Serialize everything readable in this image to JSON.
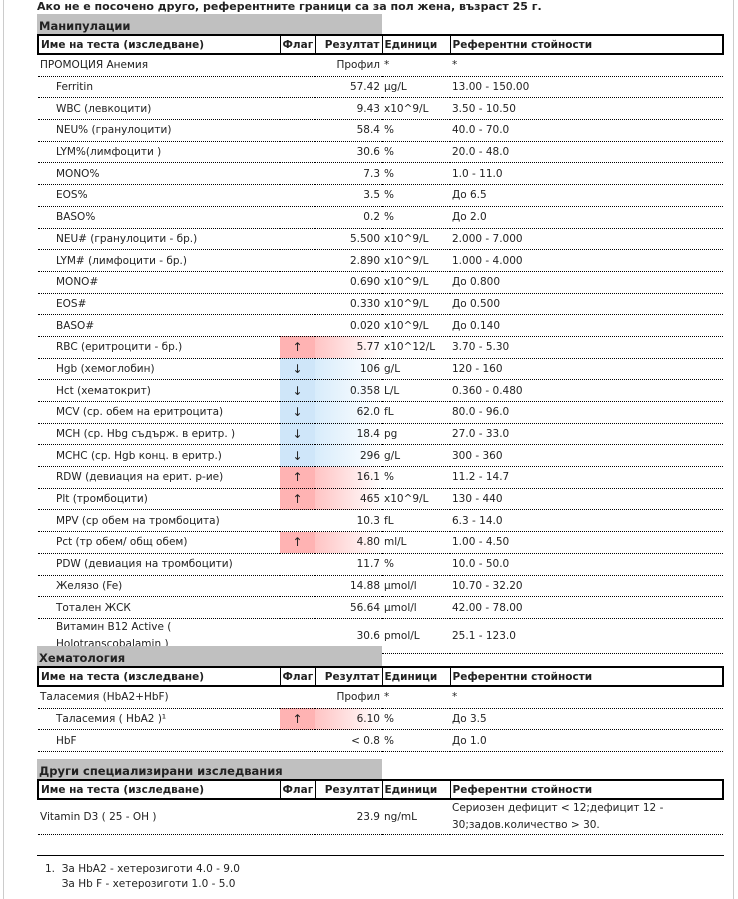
{
  "note": "Ако не е посочено друго, референтните граници са за пол жена, възраст 25 г.",
  "columns": {
    "name": "Име на теста (изследване)",
    "flag": "Флаг",
    "result": "Резултат",
    "units": "Единици",
    "ref": "Референтни стойности"
  },
  "flag_icons": {
    "up": "↑",
    "down": "↓"
  },
  "colors": {
    "high": "#ffb3b3",
    "low": "#cfe6f9",
    "section": "#c0c0c0"
  },
  "sections": [
    {
      "title": "Манипулации",
      "rows": [
        {
          "name": "ПРОМОЦИЯ Анемия",
          "flag": "",
          "result": "Профил",
          "units": "*",
          "ref": "*",
          "indent": false
        },
        {
          "name": "Ferritin",
          "flag": "",
          "result": "57.42",
          "units": "µg/L",
          "ref": "13.00 - 150.00",
          "indent": true
        },
        {
          "name": "WBC (левкоцити)",
          "flag": "",
          "result": "9.43",
          "units": "x10^9/L",
          "ref": "3.50 - 10.50",
          "indent": true
        },
        {
          "name": "NEU% (гранулоцити)",
          "flag": "",
          "result": "58.4",
          "units": "%",
          "ref": "40.0 - 70.0",
          "indent": true
        },
        {
          "name": "LYM%(лимфоцити )",
          "flag": "",
          "result": "30.6",
          "units": "%",
          "ref": "20.0 - 48.0",
          "indent": true
        },
        {
          "name": "MONO%",
          "flag": "",
          "result": "7.3",
          "units": "%",
          "ref": "1.0 - 11.0",
          "indent": true
        },
        {
          "name": "EOS%",
          "flag": "",
          "result": "3.5",
          "units": "%",
          "ref": "До 6.5",
          "indent": true
        },
        {
          "name": "BASO%",
          "flag": "",
          "result": "0.2",
          "units": "%",
          "ref": "До 2.0",
          "indent": true
        },
        {
          "name": "NEU# (гранулоцити - бр.)",
          "flag": "",
          "result": "5.500",
          "units": "x10^9/L",
          "ref": "2.000 - 7.000",
          "indent": true
        },
        {
          "name": "LYM# (лимфоцити - бр.)",
          "flag": "",
          "result": "2.890",
          "units": "x10^9/L",
          "ref": "1.000 - 4.000",
          "indent": true
        },
        {
          "name": "MONO#",
          "flag": "",
          "result": "0.690",
          "units": "x10^9/L",
          "ref": "До 0.800",
          "indent": true
        },
        {
          "name": "EOS#",
          "flag": "",
          "result": "0.330",
          "units": "x10^9/L",
          "ref": "До 0.500",
          "indent": true
        },
        {
          "name": "BASO#",
          "flag": "",
          "result": "0.020",
          "units": "x10^9/L",
          "ref": "До 0.140",
          "indent": true
        },
        {
          "name": "RBC (еритроцити - бр.)",
          "flag": "up",
          "result": "5.77",
          "units": "x10^12/L",
          "ref": "3.70 - 5.30",
          "indent": true
        },
        {
          "name": "Hgb (хемоглобин)",
          "flag": "down",
          "result": "106",
          "units": "g/L",
          "ref": "120 - 160",
          "indent": true
        },
        {
          "name": "Hct (хематокрит)",
          "flag": "down",
          "result": "0.358",
          "units": "L/L",
          "ref": "0.360 - 0.480",
          "indent": true
        },
        {
          "name": "MCV (ср. обем на еритроцита)",
          "flag": "down",
          "result": "62.0",
          "units": "fL",
          "ref": "80.0 - 96.0",
          "indent": true
        },
        {
          "name": "MCH (ср. Hbg съдърж. в еритр. )",
          "flag": "down",
          "result": "18.4",
          "units": "pg",
          "ref": "27.0 - 33.0",
          "indent": true
        },
        {
          "name": "MCHC (ср. Hgb конц. в еритр.)",
          "flag": "down",
          "result": "296",
          "units": "g/L",
          "ref": "300 - 360",
          "indent": true
        },
        {
          "name": "RDW (девиация на ерит. р-ие)",
          "flag": "up",
          "result": "16.1",
          "units": "%",
          "ref": "11.2 - 14.7",
          "indent": true
        },
        {
          "name": "Plt (тромбоцити)",
          "flag": "up",
          "result": "465",
          "units": "x10^9/L",
          "ref": "130 - 440",
          "indent": true
        },
        {
          "name": "MPV (ср обем на тромбоцита)",
          "flag": "",
          "result": "10.3",
          "units": "fL",
          "ref": "6.3 - 14.0",
          "indent": true
        },
        {
          "name": "Pct (тр обем/ общ обем)",
          "flag": "up",
          "result": "4.80",
          "units": "ml/L",
          "ref": "1.00 - 4.50",
          "indent": true
        },
        {
          "name": "PDW (девиация на тромбоцити)",
          "flag": "",
          "result": "11.7",
          "units": "%",
          "ref": "10.0 - 50.0",
          "indent": true
        },
        {
          "name": "Желязо (Fe)",
          "flag": "",
          "result": "14.88",
          "units": "µmol/l",
          "ref": "10.70 - 32.20",
          "indent": true
        },
        {
          "name": "Тотален ЖСК",
          "flag": "",
          "result": "56.64",
          "units": "µmol/l",
          "ref": "42.00 - 78.00",
          "indent": true
        },
        {
          "name": "Витамин B12 Active ( Holotranscobalamin )",
          "flag": "",
          "result": "30.6",
          "units": "pmol/L",
          "ref": "25.1 - 123.0",
          "indent": true,
          "tall": true
        }
      ]
    },
    {
      "title": "Хематология",
      "rows": [
        {
          "name": "Таласемия (HbA2+HbF)",
          "flag": "",
          "result": "Профил",
          "units": "*",
          "ref": "*",
          "indent": false
        },
        {
          "name": "Таласемия ( HbA2 )¹",
          "flag": "up",
          "result": "6.10",
          "units": "%",
          "ref": "До 3.5",
          "indent": true
        },
        {
          "name": "HbF",
          "flag": "",
          "result": "< 0.8",
          "units": "%",
          "ref": "До 1.0",
          "indent": true
        }
      ]
    },
    {
      "title": "Други специализирани изследвания",
      "rows": [
        {
          "name": "Vitamin D3 ( 25 - OH )",
          "flag": "",
          "result": "23.9",
          "units": "ng/mL",
          "ref": "Сериозен дефицит < 12;дефицит 12 - 30;задов.количество > 30.",
          "indent": false,
          "tall": true
        }
      ]
    }
  ],
  "footnotes": [
    "1.  За HbA2 - хетерозиготи 4.0 - 9.0",
    "     За Hb F - хетерозиготи 1.0 - 5.0"
  ]
}
